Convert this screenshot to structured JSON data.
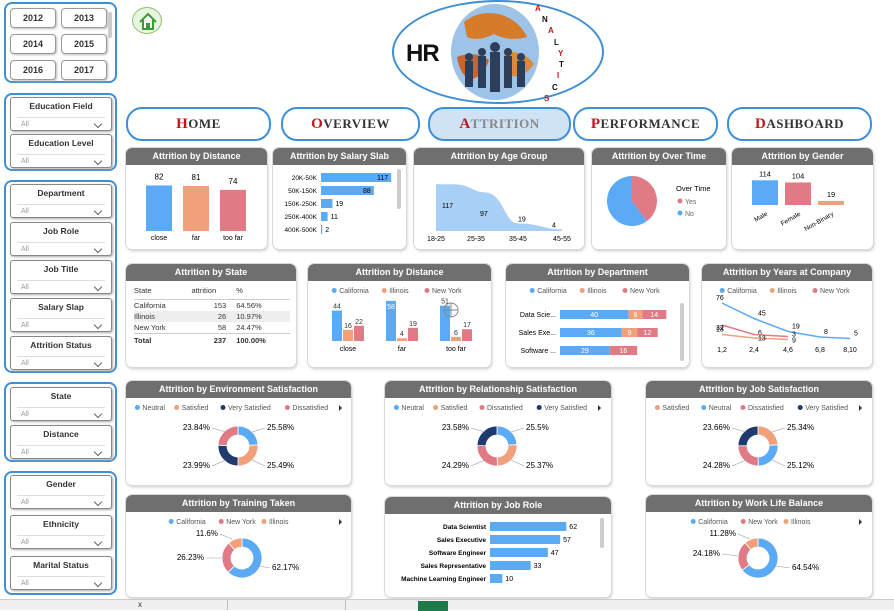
{
  "years": [
    "2012",
    "2013",
    "2014",
    "2015",
    "2016",
    "2017"
  ],
  "filters_group1": [
    {
      "label": "Education Field",
      "value": "All"
    },
    {
      "label": "Education Level",
      "value": "All"
    }
  ],
  "filters_group2": [
    {
      "label": "Department",
      "value": "All"
    },
    {
      "label": "Job Role",
      "value": "All"
    },
    {
      "label": "Job Title",
      "value": "All"
    },
    {
      "label": "Salary Slap",
      "value": "All"
    },
    {
      "label": "Attrition Status",
      "value": "All"
    }
  ],
  "filters_group3": [
    {
      "label": "State",
      "value": "All"
    },
    {
      "label": "Distance",
      "value": "All"
    }
  ],
  "filters_group4": [
    {
      "label": "Gender",
      "value": "All"
    },
    {
      "label": "Ethnicity",
      "value": "All"
    },
    {
      "label": "Marital Status",
      "value": "All"
    }
  ],
  "logo": {
    "hr": "HR",
    "word_letters": [
      "A",
      "N",
      "A",
      "L",
      "Y",
      "T",
      "I",
      "C",
      "S"
    ]
  },
  "nav": [
    {
      "first": "H",
      "rest": "OME"
    },
    {
      "first": "O",
      "rest": "VERVIEW"
    },
    {
      "first": "A",
      "rest": "TTRITION"
    },
    {
      "first": "P",
      "rest": "ERFORMANCE"
    },
    {
      "first": "D",
      "rest": "ASHBOARD"
    }
  ],
  "cards": {
    "distance": "Attrition by Distance",
    "salary": "Attrition by Salary Slab",
    "age": "Attrition by Age Group",
    "overtime": "Attrition by Over Time",
    "gender": "Attrition by Gender",
    "state": "Attrition by State",
    "distance2": "Attrition by Distance",
    "department": "Attrition by Department",
    "years": "Attrition by Years at Company",
    "env": "Attrition by Environment Satisfaction",
    "rel": "Attrition by Relationship Satisfaction",
    "job": "Attrition by Job Satisfaction",
    "training": "Attrition by Training Taken",
    "jobrole": "Attrition by Job Role",
    "wlb": "Attrition by Work Life Balance"
  },
  "colors": {
    "blue": "#5aaaf5",
    "orange": "#f0a07a",
    "red": "#e07b86",
    "navy": "#1e3a6e",
    "header": "#6f6f6f",
    "accent": "#3d8fd6"
  },
  "chart_data": [
    {
      "id": "distance",
      "type": "bar",
      "categories": [
        "close",
        "far",
        "too far"
      ],
      "values": [
        82,
        81,
        74
      ]
    },
    {
      "id": "salary",
      "type": "bar",
      "orientation": "horizontal",
      "categories": [
        "20K-50K",
        "50K-150K",
        "150K-250K",
        "250K-400K",
        "400K-500K"
      ],
      "values": [
        117,
        88,
        19,
        11,
        2
      ]
    },
    {
      "id": "age",
      "type": "area",
      "categories": [
        "18-25",
        "25-35",
        "35-45",
        "45-55"
      ],
      "values": [
        117,
        97,
        19,
        4
      ]
    },
    {
      "id": "overtime",
      "type": "pie",
      "legend_title": "Over Time",
      "labels": [
        "Yes",
        "No"
      ],
      "values": [
        40,
        60
      ]
    },
    {
      "id": "gender",
      "type": "bar",
      "categories": [
        "Male",
        "Female",
        "Non-Binary"
      ],
      "values": [
        114,
        104,
        19
      ]
    },
    {
      "id": "state",
      "type": "table",
      "columns": [
        "State",
        "attrition",
        "%"
      ],
      "rows": [
        [
          "California",
          "153",
          "64.56%"
        ],
        [
          "Illinois",
          "26",
          "10.97%"
        ],
        [
          "New York",
          "58",
          "24.47%"
        ]
      ],
      "total": [
        "Total",
        "237",
        "100.00%"
      ]
    },
    {
      "id": "distance2",
      "type": "bar",
      "legend": [
        "California",
        "Illinois",
        "New York"
      ],
      "categories": [
        "close",
        "far",
        "too far"
      ],
      "series": [
        {
          "name": "California",
          "values": [
            44,
            58,
            51
          ]
        },
        {
          "name": "Illinois",
          "values": [
            16,
            4,
            6
          ]
        },
        {
          "name": "New York",
          "values": [
            22,
            19,
            17
          ]
        }
      ]
    },
    {
      "id": "department",
      "type": "bar",
      "orientation": "horizontal",
      "stacked": true,
      "legend": [
        "California",
        "Illinois",
        "New York"
      ],
      "categories": [
        "Data Scie...",
        "Sales Exe...",
        "Software ..."
      ],
      "series": [
        {
          "name": "California",
          "values": [
            40,
            36,
            29
          ]
        },
        {
          "name": "Illinois",
          "values": [
            8,
            9,
            0
          ]
        },
        {
          "name": "New York",
          "values": [
            14,
            12,
            16
          ]
        }
      ]
    },
    {
      "id": "years",
      "type": "line",
      "legend": [
        "California",
        "Illinois",
        "New York"
      ],
      "categories": [
        "1,2",
        "2,4",
        "4,6",
        "6,8",
        "8,10"
      ],
      "series": [
        {
          "name": "California",
          "values": [
            76,
            45,
            19,
            8,
            5
          ]
        },
        {
          "name": "Illinois",
          "values": [
            13,
            6,
            3,
            null,
            null
          ]
        },
        {
          "name": "New York",
          "values": [
            32,
            13,
            9,
            null,
            null
          ]
        }
      ]
    },
    {
      "id": "env",
      "type": "pie",
      "donut": true,
      "legend": [
        "Neutral",
        "Satisfied",
        "Very Satisfied",
        "Dissatisfied"
      ],
      "values": [
        23.84,
        25.58,
        25.49,
        23.99
      ]
    },
    {
      "id": "rel",
      "type": "pie",
      "donut": true,
      "legend": [
        "Neutral",
        "Satisfied",
        "Dissatisfied",
        "Very Satisfied"
      ],
      "values": [
        23.58,
        25.5,
        25.37,
        24.29
      ]
    },
    {
      "id": "job",
      "type": "pie",
      "donut": true,
      "legend": [
        "Satisfied",
        "Neutral",
        "Dissatisfied",
        "Very Satisfied"
      ],
      "values": [
        23.66,
        25.34,
        25.12,
        24.28
      ]
    },
    {
      "id": "training",
      "type": "pie",
      "donut": true,
      "legend": [
        "California",
        "New York",
        "Illinois"
      ],
      "values": [
        62.17,
        26.23,
        11.6
      ]
    },
    {
      "id": "jobrole",
      "type": "bar",
      "orientation": "horizontal",
      "categories": [
        "Data Scientist",
        "Sales Executive",
        "Software Engineer",
        "Sales Representative",
        "Machine Learning Engineer"
      ],
      "values": [
        62,
        57,
        47,
        33,
        10
      ]
    },
    {
      "id": "wlb",
      "type": "pie",
      "donut": true,
      "legend": [
        "California",
        "New York",
        "Illinois"
      ],
      "values": [
        64.54,
        24.18,
        11.28
      ]
    }
  ],
  "donut_labels": {
    "env": [
      "23.84%",
      "25.58%",
      "25.49%",
      "23.99%"
    ],
    "rel": [
      "23.58%",
      "25.5%",
      "25.37%",
      "24.29%"
    ],
    "job": [
      "23.66%",
      "25.34%",
      "25.12%",
      "24.28%"
    ],
    "training": [
      "11.6%",
      "26.23%",
      "62.17%"
    ],
    "wlb": [
      "11.28%",
      "24.18%",
      "64.54%"
    ]
  },
  "taskbar": {
    "close_label": "x"
  }
}
